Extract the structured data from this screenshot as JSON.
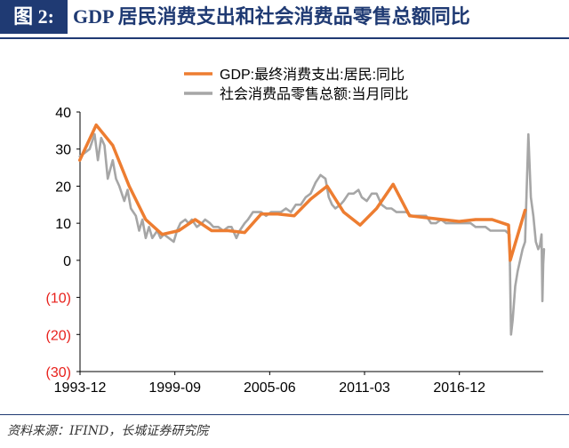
{
  "header": {
    "figure_label": "图 2:",
    "title": "GDP 居民消费支出和社会消费品零售总额同比",
    "accent_color": "#1f3a73"
  },
  "footer": {
    "source": "资料来源：IFIND，长城证券研究院"
  },
  "chart_data": {
    "type": "line",
    "title": "",
    "xlabel": "",
    "ylabel": "",
    "ylim": [
      -30,
      40
    ],
    "yticks": [
      {
        "value": 40,
        "label": "40",
        "color": "#000000"
      },
      {
        "value": 30,
        "label": "30",
        "color": "#000000"
      },
      {
        "value": 20,
        "label": "20",
        "color": "#000000"
      },
      {
        "value": 10,
        "label": "10",
        "color": "#000000"
      },
      {
        "value": 0,
        "label": "0",
        "color": "#000000"
      },
      {
        "value": -10,
        "label": "(10)",
        "color": "#e8211c"
      },
      {
        "value": -20,
        "label": "(20)",
        "color": "#e8211c"
      },
      {
        "value": -30,
        "label": "(30)",
        "color": "#e8211c"
      }
    ],
    "xlim": [
      1993.917,
      2022.0
    ],
    "xticks": [
      {
        "value": 1993.917,
        "label": "1993-12"
      },
      {
        "value": 1999.667,
        "label": "1999-09"
      },
      {
        "value": 2005.417,
        "label": "2005-06"
      },
      {
        "value": 2011.167,
        "label": "2011-03"
      },
      {
        "value": 2016.917,
        "label": "2016-12"
      }
    ],
    "grid": false,
    "legend_position": "top-right",
    "series": [
      {
        "name": "GDP:最终消费支出:居民:同比",
        "color": "#ed7d31",
        "width": 3.5,
        "points": [
          [
            1993.9,
            27
          ],
          [
            1994.9,
            36.5
          ],
          [
            1995.9,
            31
          ],
          [
            1996.9,
            20
          ],
          [
            1997.9,
            11
          ],
          [
            1998.9,
            7
          ],
          [
            1999.9,
            8
          ],
          [
            2000.9,
            11
          ],
          [
            2001.9,
            8
          ],
          [
            2002.9,
            8
          ],
          [
            2003.9,
            7.5
          ],
          [
            2004.9,
            12.5
          ],
          [
            2005.9,
            12.5
          ],
          [
            2006.9,
            12
          ],
          [
            2007.9,
            16.5
          ],
          [
            2008.9,
            20
          ],
          [
            2009.9,
            13
          ],
          [
            2010.9,
            9.5
          ],
          [
            2011.9,
            14
          ],
          [
            2012.9,
            20.5
          ],
          [
            2013.9,
            12
          ],
          [
            2014.9,
            11.5
          ],
          [
            2015.9,
            11
          ],
          [
            2016.9,
            10.5
          ],
          [
            2017.9,
            11
          ],
          [
            2018.9,
            11
          ],
          [
            2019.9,
            9.5
          ],
          [
            2020.0,
            0
          ],
          [
            2020.9,
            13.5
          ]
        ]
      },
      {
        "name": "社会消费品零售总额:当月同比",
        "color": "#a6a6a6",
        "width": 2.6,
        "points": [
          [
            1993.9,
            28
          ],
          [
            1994.2,
            29
          ],
          [
            1994.5,
            30
          ],
          [
            1994.8,
            34
          ],
          [
            1995.0,
            27
          ],
          [
            1995.2,
            33
          ],
          [
            1995.4,
            31
          ],
          [
            1995.6,
            22
          ],
          [
            1995.9,
            27
          ],
          [
            1996.1,
            22
          ],
          [
            1996.3,
            20
          ],
          [
            1996.6,
            16
          ],
          [
            1996.8,
            19
          ],
          [
            1997.0,
            14
          ],
          [
            1997.3,
            12
          ],
          [
            1997.5,
            8
          ],
          [
            1997.7,
            11
          ],
          [
            1997.9,
            6
          ],
          [
            1998.1,
            9
          ],
          [
            1998.3,
            6
          ],
          [
            1998.6,
            8
          ],
          [
            1998.8,
            6
          ],
          [
            1999.0,
            7
          ],
          [
            1999.3,
            6
          ],
          [
            1999.6,
            5
          ],
          [
            1999.8,
            8
          ],
          [
            2000.0,
            10
          ],
          [
            2000.3,
            11
          ],
          [
            2000.5,
            10
          ],
          [
            2000.7,
            11
          ],
          [
            2001.0,
            9
          ],
          [
            2001.3,
            10
          ],
          [
            2001.5,
            11
          ],
          [
            2001.8,
            10
          ],
          [
            2002.0,
            9
          ],
          [
            2002.3,
            9
          ],
          [
            2002.6,
            8
          ],
          [
            2002.9,
            9
          ],
          [
            2003.1,
            9
          ],
          [
            2003.4,
            6
          ],
          [
            2003.6,
            8
          ],
          [
            2003.9,
            10
          ],
          [
            2004.1,
            11
          ],
          [
            2004.4,
            13
          ],
          [
            2004.6,
            13
          ],
          [
            2004.9,
            13
          ],
          [
            2005.2,
            12
          ],
          [
            2005.5,
            13
          ],
          [
            2005.8,
            13
          ],
          [
            2006.1,
            13
          ],
          [
            2006.4,
            14
          ],
          [
            2006.7,
            13
          ],
          [
            2007.0,
            15
          ],
          [
            2007.3,
            15
          ],
          [
            2007.6,
            17
          ],
          [
            2007.9,
            18
          ],
          [
            2008.2,
            21
          ],
          [
            2008.5,
            23
          ],
          [
            2008.8,
            22
          ],
          [
            2009.0,
            17
          ],
          [
            2009.2,
            15
          ],
          [
            2009.4,
            14
          ],
          [
            2009.7,
            15
          ],
          [
            2009.9,
            16
          ],
          [
            2010.2,
            18
          ],
          [
            2010.5,
            18
          ],
          [
            2010.8,
            19
          ],
          [
            2011.0,
            17
          ],
          [
            2011.3,
            16
          ],
          [
            2011.6,
            18
          ],
          [
            2011.9,
            18
          ],
          [
            2012.2,
            15
          ],
          [
            2012.5,
            14
          ],
          [
            2012.8,
            14
          ],
          [
            2013.1,
            13
          ],
          [
            2013.4,
            13
          ],
          [
            2013.7,
            13
          ],
          [
            2014.0,
            12
          ],
          [
            2014.3,
            12
          ],
          [
            2014.6,
            12
          ],
          [
            2014.9,
            12
          ],
          [
            2015.2,
            10
          ],
          [
            2015.5,
            10
          ],
          [
            2015.8,
            11
          ],
          [
            2016.1,
            10
          ],
          [
            2016.4,
            10
          ],
          [
            2016.7,
            10
          ],
          [
            2017.0,
            10
          ],
          [
            2017.3,
            10
          ],
          [
            2017.6,
            10
          ],
          [
            2017.9,
            9
          ],
          [
            2018.2,
            9
          ],
          [
            2018.5,
            9
          ],
          [
            2018.8,
            8
          ],
          [
            2019.1,
            8
          ],
          [
            2019.4,
            8
          ],
          [
            2019.7,
            8
          ],
          [
            2019.95,
            7
          ],
          [
            2020.05,
            -20
          ],
          [
            2020.15,
            -16
          ],
          [
            2020.3,
            -7
          ],
          [
            2020.45,
            -3
          ],
          [
            2020.6,
            0
          ],
          [
            2020.75,
            3
          ],
          [
            2020.9,
            5
          ],
          [
            2021.1,
            34
          ],
          [
            2021.25,
            17
          ],
          [
            2021.4,
            12
          ],
          [
            2021.55,
            5
          ],
          [
            2021.7,
            3
          ],
          [
            2021.8,
            4
          ],
          [
            2021.9,
            7
          ],
          [
            2021.95,
            -11
          ],
          [
            2022.0,
            -1
          ],
          [
            2022.05,
            3
          ]
        ]
      }
    ]
  }
}
